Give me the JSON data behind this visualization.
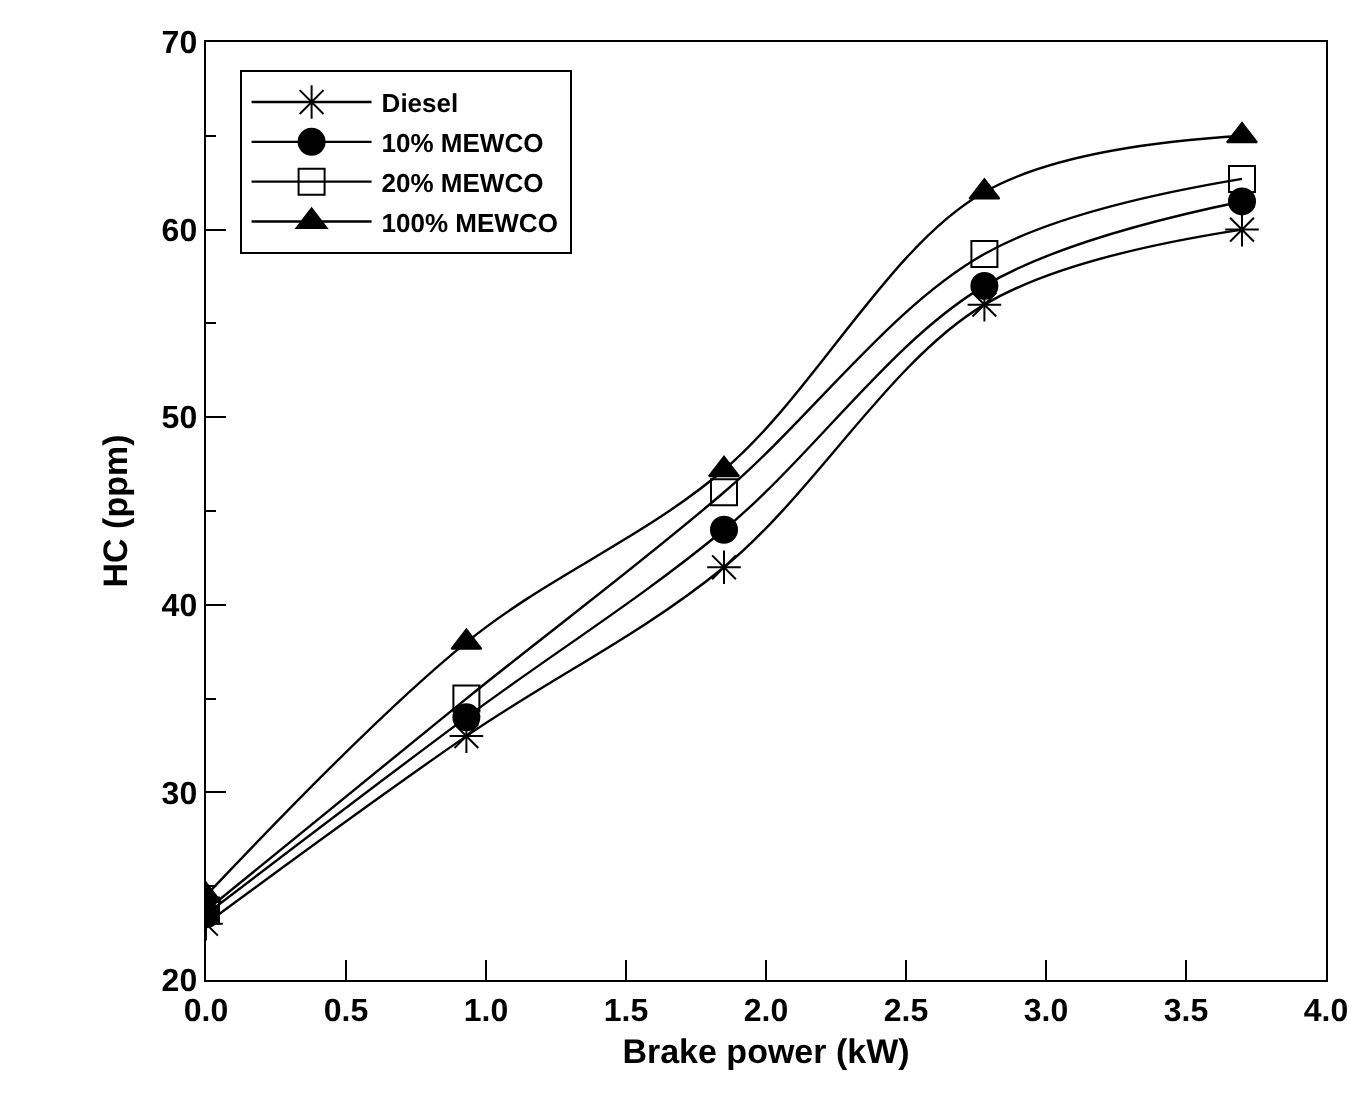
{
  "chart_data": {
    "type": "line",
    "xlabel": "Brake power (kW)",
    "ylabel": "HC (ppm)",
    "x": [
      0,
      0.93,
      1.85,
      2.78,
      3.7
    ],
    "series": [
      {
        "name": "Diesel",
        "color": "#000000",
        "marker": "cross",
        "values": [
          23,
          33,
          42,
          56,
          60
        ]
      },
      {
        "name": "10% MEWCO",
        "color": "#000000",
        "marker": "circle",
        "values": [
          23.5,
          34,
          44,
          57,
          61.5
        ]
      },
      {
        "name": "20% MEWCO",
        "color": "#000000",
        "marker": "square",
        "values": [
          23.7,
          35,
          46,
          58.7,
          62.7
        ]
      },
      {
        "name": "100% MEWCO",
        "color": "#000000",
        "marker": "triangle",
        "values": [
          24.5,
          38,
          47.2,
          62,
          65
        ]
      }
    ],
    "xlim": [
      0,
      4
    ],
    "xticks": [
      {
        "value": 0,
        "label": "0.0"
      },
      {
        "value": 0.5,
        "label": "0.5"
      },
      {
        "value": 1,
        "label": "1.0"
      },
      {
        "value": 1.5,
        "label": "1.5"
      },
      {
        "value": 2,
        "label": "2.0"
      },
      {
        "value": 2.5,
        "label": "2.5"
      },
      {
        "value": 3,
        "label": "3.0"
      },
      {
        "value": 3.5,
        "label": "3.5"
      },
      {
        "value": 4,
        "label": "4.0"
      }
    ],
    "ylim": [
      20,
      70
    ],
    "yticks": [
      20,
      30,
      40,
      50,
      60,
      70
    ],
    "grid": false,
    "legend": "top left",
    "line_style": "solid"
  }
}
